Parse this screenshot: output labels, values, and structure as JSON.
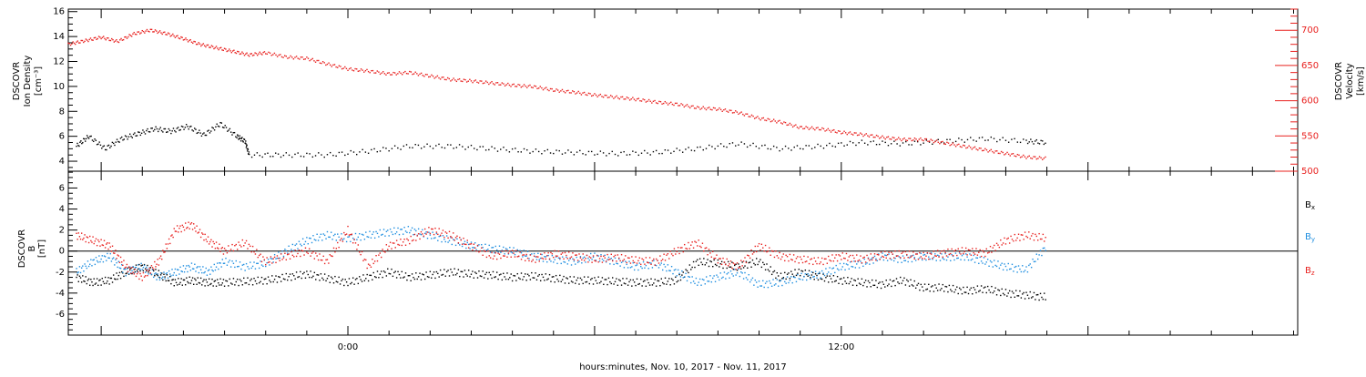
{
  "xlabel": "hours:minutes, Nov. 10, 2017 - Nov. 11, 2017",
  "x_ticks": [
    {
      "hour": 0,
      "label": "0:00"
    },
    {
      "hour": 12,
      "label": "12:00"
    }
  ],
  "chart_data": [
    {
      "type": "scatter",
      "title": "",
      "x_unit": "hours relative to Nov. 10, 2017 0:00",
      "xlim": [
        -6.8,
        23.1
      ],
      "ylabel_left": [
        "DSCOVR",
        "Ion Density",
        "[cm⁻³]"
      ],
      "ylabel_right": [
        "DSCOVR",
        "Velocity",
        "[km/s]"
      ],
      "ylim_left": [
        3.2,
        16.2
      ],
      "ylim_right": [
        500,
        730
      ],
      "left_ticks": [
        4,
        6,
        8,
        10,
        12,
        14,
        16
      ],
      "right_ticks": [
        500,
        550,
        600,
        650,
        700
      ],
      "left_color": "#000000",
      "right_color": "#e8201e",
      "series": [
        {
          "axis": "left",
          "color": "#000000",
          "points": [
            [
              -6.6,
              5.2
            ],
            [
              -6.3,
              6.0
            ],
            [
              -5.9,
              5.0
            ],
            [
              -5.5,
              5.8
            ],
            [
              -5.1,
              6.2
            ],
            [
              -4.7,
              6.6
            ],
            [
              -4.3,
              6.4
            ],
            [
              -3.9,
              6.8
            ],
            [
              -3.5,
              6.1
            ],
            [
              -3.1,
              7.0
            ],
            [
              -2.7,
              6.0
            ],
            [
              -2.5,
              5.6
            ],
            [
              -2.4,
              4.5
            ],
            [
              -1.5,
              4.5
            ],
            [
              -0.5,
              4.5
            ],
            [
              0.5,
              4.8
            ],
            [
              1.5,
              5.2
            ],
            [
              2.5,
              5.2
            ],
            [
              3.5,
              5.0
            ],
            [
              4.5,
              4.8
            ],
            [
              5.5,
              4.7
            ],
            [
              6.5,
              4.6
            ],
            [
              7.5,
              4.7
            ],
            [
              8.5,
              5.0
            ],
            [
              9.5,
              5.4
            ],
            [
              10.5,
              5.0
            ],
            [
              11.5,
              5.2
            ],
            [
              12.5,
              5.5
            ],
            [
              13.5,
              5.4
            ],
            [
              14.5,
              5.6
            ],
            [
              15.5,
              5.8
            ],
            [
              16.5,
              5.6
            ],
            [
              17.0,
              5.5
            ]
          ]
        },
        {
          "axis": "right",
          "color": "#e8201e",
          "points": [
            [
              -6.8,
              680
            ],
            [
              -6.4,
              685
            ],
            [
              -6.0,
              690
            ],
            [
              -5.6,
              684
            ],
            [
              -5.2,
              695
            ],
            [
              -4.8,
              700
            ],
            [
              -4.4,
              695
            ],
            [
              -4.0,
              688
            ],
            [
              -3.6,
              680
            ],
            [
              -3.2,
              675
            ],
            [
              -2.8,
              670
            ],
            [
              -2.4,
              665
            ],
            [
              -2.0,
              668
            ],
            [
              -1.5,
              662
            ],
            [
              -1.0,
              660
            ],
            [
              -0.5,
              652
            ],
            [
              0.0,
              645
            ],
            [
              0.5,
              642
            ],
            [
              1.0,
              638
            ],
            [
              1.5,
              640
            ],
            [
              2.0,
              635
            ],
            [
              2.5,
              630
            ],
            [
              3.0,
              628
            ],
            [
              3.5,
              625
            ],
            [
              4.0,
              622
            ],
            [
              4.5,
              620
            ],
            [
              5.0,
              615
            ],
            [
              5.5,
              612
            ],
            [
              6.0,
              608
            ],
            [
              6.5,
              605
            ],
            [
              7.0,
              602
            ],
            [
              7.5,
              598
            ],
            [
              8.0,
              595
            ],
            [
              8.5,
              590
            ],
            [
              9.0,
              588
            ],
            [
              9.5,
              583
            ],
            [
              10.0,
              575
            ],
            [
              10.5,
              570
            ],
            [
              11.0,
              562
            ],
            [
              11.5,
              560
            ],
            [
              12.0,
              555
            ],
            [
              12.5,
              552
            ],
            [
              13.0,
              548
            ],
            [
              13.5,
              545
            ],
            [
              14.0,
              545
            ],
            [
              14.5,
              540
            ],
            [
              15.0,
              535
            ],
            [
              15.5,
              530
            ],
            [
              16.0,
              525
            ],
            [
              16.5,
              520
            ],
            [
              17.0,
              518
            ]
          ]
        }
      ]
    },
    {
      "type": "scatter",
      "title": "",
      "x_unit": "hours relative to Nov. 10, 2017 0:00",
      "xlim": [
        -6.8,
        23.1
      ],
      "ylabel": [
        "DSCOVR",
        "B",
        "[nT]"
      ],
      "ylim": [
        -8,
        7.6
      ],
      "y_ticks": [
        -6,
        -4,
        -2,
        0,
        2,
        4,
        6
      ],
      "zero_line": true,
      "series": [
        {
          "name": "B_x",
          "color": "#000000",
          "points": [
            [
              -6.6,
              -2.5
            ],
            [
              -6.2,
              -3.0
            ],
            [
              -5.8,
              -2.8
            ],
            [
              -5.4,
              -2.0
            ],
            [
              -5.0,
              -1.5
            ],
            [
              -4.6,
              -2.2
            ],
            [
              -4.2,
              -3.0
            ],
            [
              -3.8,
              -2.8
            ],
            [
              -3.4,
              -3.0
            ],
            [
              -3.0,
              -3.0
            ],
            [
              -2.5,
              -2.9
            ],
            [
              -2.0,
              -2.8
            ],
            [
              -1.5,
              -2.5
            ],
            [
              -1.0,
              -2.2
            ],
            [
              -0.5,
              -2.6
            ],
            [
              0.0,
              -3.0
            ],
            [
              0.5,
              -2.5
            ],
            [
              1.0,
              -2.0
            ],
            [
              1.5,
              -2.5
            ],
            [
              2.0,
              -2.3
            ],
            [
              2.5,
              -2.0
            ],
            [
              3.0,
              -2.2
            ],
            [
              3.5,
              -2.3
            ],
            [
              4.0,
              -2.5
            ],
            [
              4.5,
              -2.4
            ],
            [
              5.0,
              -2.6
            ],
            [
              5.5,
              -2.8
            ],
            [
              6.0,
              -2.8
            ],
            [
              6.5,
              -2.9
            ],
            [
              7.0,
              -3.0
            ],
            [
              7.5,
              -3.0
            ],
            [
              8.0,
              -2.8
            ],
            [
              8.5,
              -1.0
            ],
            [
              9.0,
              -1.2
            ],
            [
              9.5,
              -1.5
            ],
            [
              10.0,
              -1.0
            ],
            [
              10.5,
              -2.5
            ],
            [
              11.0,
              -2.0
            ],
            [
              11.5,
              -2.5
            ],
            [
              12.0,
              -2.8
            ],
            [
              12.5,
              -3.0
            ],
            [
              13.0,
              -3.2
            ],
            [
              13.5,
              -2.8
            ],
            [
              14.0,
              -3.5
            ],
            [
              14.5,
              -3.5
            ],
            [
              15.0,
              -3.8
            ],
            [
              15.5,
              -3.6
            ],
            [
              16.0,
              -4.0
            ],
            [
              16.5,
              -4.2
            ],
            [
              17.0,
              -4.4
            ]
          ]
        },
        {
          "name": "B_y",
          "color": "#1e8ee0",
          "points": [
            [
              -6.6,
              -2.0
            ],
            [
              -6.2,
              -1.0
            ],
            [
              -5.8,
              -0.5
            ],
            [
              -5.4,
              -2.0
            ],
            [
              -5.0,
              -1.5
            ],
            [
              -4.6,
              -2.5
            ],
            [
              -4.2,
              -2.0
            ],
            [
              -3.8,
              -1.5
            ],
            [
              -3.4,
              -2.0
            ],
            [
              -3.0,
              -1.0
            ],
            [
              -2.5,
              -1.5
            ],
            [
              -2.0,
              -1.2
            ],
            [
              -1.5,
              0.0
            ],
            [
              -1.0,
              1.0
            ],
            [
              -0.5,
              1.5
            ],
            [
              0.0,
              1.2
            ],
            [
              0.5,
              1.5
            ],
            [
              1.0,
              1.8
            ],
            [
              1.5,
              2.0
            ],
            [
              2.0,
              1.5
            ],
            [
              2.5,
              1.0
            ],
            [
              3.0,
              0.5
            ],
            [
              3.5,
              0.2
            ],
            [
              4.0,
              0.0
            ],
            [
              4.5,
              -0.5
            ],
            [
              5.0,
              -0.8
            ],
            [
              5.5,
              -1.0
            ],
            [
              6.0,
              -0.5
            ],
            [
              6.5,
              -1.0
            ],
            [
              7.0,
              -1.5
            ],
            [
              7.5,
              -1.2
            ],
            [
              8.0,
              -2.0
            ],
            [
              8.5,
              -3.0
            ],
            [
              9.0,
              -2.5
            ],
            [
              9.5,
              -2.0
            ],
            [
              10.0,
              -3.2
            ],
            [
              10.5,
              -3.0
            ],
            [
              11.0,
              -2.5
            ],
            [
              11.5,
              -2.2
            ],
            [
              12.0,
              -1.5
            ],
            [
              12.5,
              -1.2
            ],
            [
              13.0,
              -0.5
            ],
            [
              13.5,
              -0.8
            ],
            [
              14.0,
              -0.5
            ],
            [
              14.5,
              -0.6
            ],
            [
              15.0,
              -0.5
            ],
            [
              15.5,
              -1.0
            ],
            [
              16.0,
              -1.5
            ],
            [
              16.5,
              -1.8
            ],
            [
              17.0,
              0.5
            ]
          ]
        },
        {
          "name": "B_z",
          "color": "#e8201e",
          "points": [
            [
              -6.6,
              1.5
            ],
            [
              -6.2,
              1.0
            ],
            [
              -5.8,
              0.5
            ],
            [
              -5.4,
              -1.5
            ],
            [
              -5.0,
              -2.5
            ],
            [
              -4.6,
              -1.0
            ],
            [
              -4.2,
              2.0
            ],
            [
              -3.8,
              2.5
            ],
            [
              -3.4,
              1.0
            ],
            [
              -3.0,
              0.0
            ],
            [
              -2.5,
              0.8
            ],
            [
              -2.0,
              -1.0
            ],
            [
              -1.5,
              -0.5
            ],
            [
              -1.0,
              0.0
            ],
            [
              -0.5,
              -1.0
            ],
            [
              0.0,
              2.0
            ],
            [
              0.5,
              -1.5
            ],
            [
              1.0,
              0.5
            ],
            [
              1.5,
              1.0
            ],
            [
              2.0,
              2.0
            ],
            [
              2.5,
              1.5
            ],
            [
              3.0,
              0.5
            ],
            [
              3.5,
              -0.5
            ],
            [
              4.0,
              -0.2
            ],
            [
              4.5,
              -0.8
            ],
            [
              5.0,
              -0.3
            ],
            [
              5.5,
              -0.5
            ],
            [
              6.0,
              -0.8
            ],
            [
              6.5,
              -0.6
            ],
            [
              7.0,
              -0.9
            ],
            [
              7.5,
              -1.0
            ],
            [
              8.0,
              0.0
            ],
            [
              8.5,
              0.8
            ],
            [
              9.0,
              -0.8
            ],
            [
              9.5,
              -1.5
            ],
            [
              10.0,
              0.5
            ],
            [
              10.5,
              -0.5
            ],
            [
              11.0,
              -0.8
            ],
            [
              11.5,
              -1.0
            ],
            [
              12.0,
              -0.5
            ],
            [
              12.5,
              -0.8
            ],
            [
              13.0,
              -0.4
            ],
            [
              13.5,
              -0.3
            ],
            [
              14.0,
              -0.5
            ],
            [
              14.5,
              -0.2
            ],
            [
              15.0,
              0.0
            ],
            [
              15.5,
              -0.2
            ],
            [
              16.0,
              1.0
            ],
            [
              16.5,
              1.5
            ],
            [
              17.0,
              1.2
            ]
          ]
        }
      ]
    }
  ]
}
